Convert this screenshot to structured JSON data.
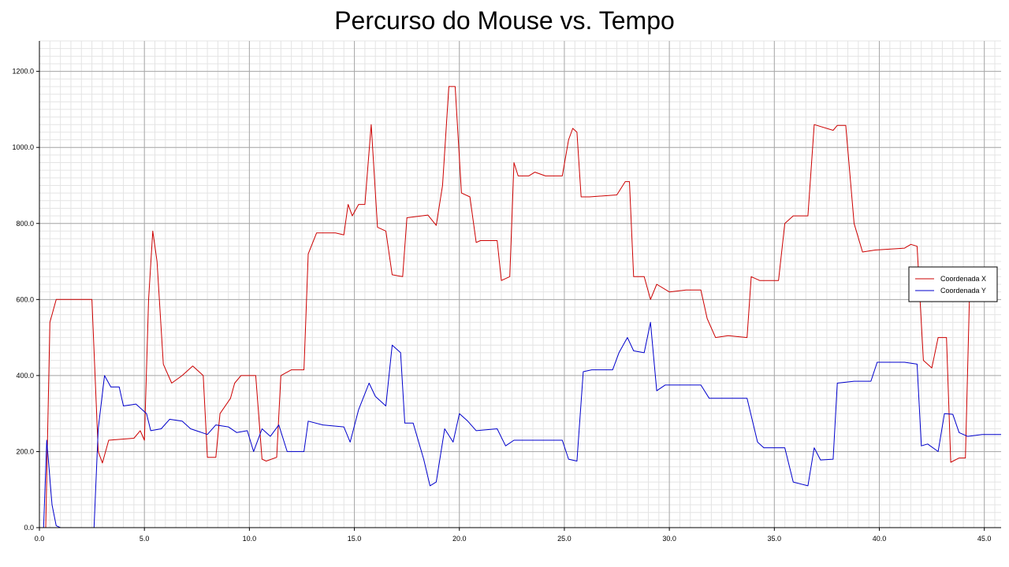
{
  "chart_data": {
    "type": "line",
    "title": "Percurso do Mouse vs. Tempo",
    "xlabel": "",
    "ylabel": "",
    "xlim": [
      0,
      45.8
    ],
    "ylim": [
      0,
      1280
    ],
    "grid": true,
    "legend_position": "right",
    "x_ticks": [
      "0.0",
      "5.0",
      "10.0",
      "15.0",
      "20.0",
      "25.0",
      "30.0",
      "35.0",
      "40.0",
      "45.0"
    ],
    "y_ticks": [
      "0.0",
      "200.0",
      "400.0",
      "600.0",
      "800.0",
      "1000.0",
      "1200.0"
    ],
    "series": [
      {
        "name": "Coordenada X",
        "color": "#cc0000",
        "points": [
          [
            0.0,
            0
          ],
          [
            0.3,
            0
          ],
          [
            0.5,
            540
          ],
          [
            0.8,
            600
          ],
          [
            2.5,
            600
          ],
          [
            2.8,
            200
          ],
          [
            3.0,
            170
          ],
          [
            3.3,
            230
          ],
          [
            4.5,
            235
          ],
          [
            4.8,
            255
          ],
          [
            5.0,
            230
          ],
          [
            5.2,
            600
          ],
          [
            5.4,
            780
          ],
          [
            5.6,
            700
          ],
          [
            5.9,
            430
          ],
          [
            6.3,
            380
          ],
          [
            6.8,
            400
          ],
          [
            7.3,
            425
          ],
          [
            7.8,
            400
          ],
          [
            8.0,
            185
          ],
          [
            8.4,
            185
          ],
          [
            8.6,
            300
          ],
          [
            9.1,
            340
          ],
          [
            9.3,
            380
          ],
          [
            9.6,
            400
          ],
          [
            10.3,
            400
          ],
          [
            10.6,
            180
          ],
          [
            10.8,
            175
          ],
          [
            11.3,
            185
          ],
          [
            11.5,
            400
          ],
          [
            12.0,
            415
          ],
          [
            12.6,
            415
          ],
          [
            12.8,
            720
          ],
          [
            13.2,
            775
          ],
          [
            14.1,
            775
          ],
          [
            14.5,
            770
          ],
          [
            14.7,
            850
          ],
          [
            14.9,
            820
          ],
          [
            15.2,
            850
          ],
          [
            15.5,
            850
          ],
          [
            15.8,
            1060
          ],
          [
            16.1,
            790
          ],
          [
            16.5,
            780
          ],
          [
            16.8,
            665
          ],
          [
            17.3,
            660
          ],
          [
            17.5,
            815
          ],
          [
            18.5,
            822
          ],
          [
            18.9,
            795
          ],
          [
            19.2,
            900
          ],
          [
            19.5,
            1160
          ],
          [
            19.8,
            1160
          ],
          [
            20.1,
            880
          ],
          [
            20.5,
            870
          ],
          [
            20.8,
            750
          ],
          [
            21.0,
            755
          ],
          [
            21.8,
            755
          ],
          [
            22.0,
            650
          ],
          [
            22.4,
            660
          ],
          [
            22.6,
            960
          ],
          [
            22.8,
            925
          ],
          [
            23.3,
            925
          ],
          [
            23.6,
            935
          ],
          [
            24.1,
            925
          ],
          [
            24.9,
            925
          ],
          [
            25.2,
            1020
          ],
          [
            25.4,
            1050
          ],
          [
            25.6,
            1040
          ],
          [
            25.8,
            870
          ],
          [
            26.2,
            870
          ],
          [
            27.5,
            875
          ],
          [
            27.9,
            910
          ],
          [
            28.1,
            910
          ],
          [
            28.3,
            660
          ],
          [
            28.8,
            660
          ],
          [
            29.1,
            600
          ],
          [
            29.4,
            640
          ],
          [
            30.0,
            620
          ],
          [
            30.8,
            625
          ],
          [
            31.5,
            625
          ],
          [
            31.8,
            550
          ],
          [
            32.2,
            500
          ],
          [
            32.8,
            505
          ],
          [
            33.7,
            500
          ],
          [
            33.9,
            660
          ],
          [
            34.3,
            650
          ],
          [
            35.2,
            650
          ],
          [
            35.5,
            800
          ],
          [
            35.9,
            820
          ],
          [
            36.6,
            820
          ],
          [
            36.9,
            1060
          ],
          [
            37.8,
            1045
          ],
          [
            38.0,
            1058
          ],
          [
            38.4,
            1058
          ],
          [
            38.8,
            800
          ],
          [
            39.2,
            725
          ],
          [
            39.8,
            730
          ],
          [
            41.2,
            735
          ],
          [
            41.5,
            745
          ],
          [
            41.8,
            740
          ],
          [
            42.1,
            440
          ],
          [
            42.5,
            420
          ],
          [
            42.8,
            500
          ],
          [
            43.2,
            500
          ],
          [
            43.4,
            172
          ],
          [
            43.8,
            183
          ],
          [
            44.1,
            183
          ],
          [
            44.3,
            620
          ]
        ]
      },
      {
        "name": "Coordenada Y",
        "color": "#0000cc",
        "points": [
          [
            0.0,
            0
          ],
          [
            0.2,
            0
          ],
          [
            0.35,
            230
          ],
          [
            0.6,
            60
          ],
          [
            0.8,
            5
          ],
          [
            1.0,
            0
          ],
          [
            2.6,
            0
          ],
          [
            2.8,
            260
          ],
          [
            3.1,
            400
          ],
          [
            3.4,
            370
          ],
          [
            3.8,
            370
          ],
          [
            4.0,
            320
          ],
          [
            4.6,
            325
          ],
          [
            5.1,
            300
          ],
          [
            5.3,
            255
          ],
          [
            5.8,
            260
          ],
          [
            6.2,
            285
          ],
          [
            6.8,
            280
          ],
          [
            7.2,
            260
          ],
          [
            8.0,
            245
          ],
          [
            8.4,
            270
          ],
          [
            9.0,
            265
          ],
          [
            9.4,
            250
          ],
          [
            9.9,
            255
          ],
          [
            10.2,
            200
          ],
          [
            10.6,
            260
          ],
          [
            11.0,
            240
          ],
          [
            11.4,
            270
          ],
          [
            11.8,
            200
          ],
          [
            12.6,
            200
          ],
          [
            12.8,
            280
          ],
          [
            13.5,
            270
          ],
          [
            14.5,
            265
          ],
          [
            14.8,
            225
          ],
          [
            15.2,
            310
          ],
          [
            15.7,
            380
          ],
          [
            16.0,
            345
          ],
          [
            16.5,
            320
          ],
          [
            16.8,
            480
          ],
          [
            17.2,
            460
          ],
          [
            17.4,
            275
          ],
          [
            17.8,
            275
          ],
          [
            18.3,
            180
          ],
          [
            18.6,
            110
          ],
          [
            18.9,
            120
          ],
          [
            19.3,
            260
          ],
          [
            19.7,
            225
          ],
          [
            20.0,
            300
          ],
          [
            20.4,
            280
          ],
          [
            20.8,
            255
          ],
          [
            21.8,
            260
          ],
          [
            22.2,
            215
          ],
          [
            22.6,
            230
          ],
          [
            24.9,
            230
          ],
          [
            25.2,
            180
          ],
          [
            25.6,
            175
          ],
          [
            25.9,
            410
          ],
          [
            26.3,
            415
          ],
          [
            27.3,
            415
          ],
          [
            27.6,
            460
          ],
          [
            28.0,
            500
          ],
          [
            28.3,
            465
          ],
          [
            28.8,
            460
          ],
          [
            29.1,
            540
          ],
          [
            29.4,
            360
          ],
          [
            29.8,
            375
          ],
          [
            31.5,
            375
          ],
          [
            31.9,
            340
          ],
          [
            33.7,
            340
          ],
          [
            34.2,
            225
          ],
          [
            34.5,
            210
          ],
          [
            35.5,
            210
          ],
          [
            35.9,
            120
          ],
          [
            36.6,
            110
          ],
          [
            36.9,
            210
          ],
          [
            37.2,
            178
          ],
          [
            37.8,
            180
          ],
          [
            38.0,
            380
          ],
          [
            38.8,
            385
          ],
          [
            39.6,
            385
          ],
          [
            39.9,
            435
          ],
          [
            41.2,
            435
          ],
          [
            41.8,
            430
          ],
          [
            42.0,
            215
          ],
          [
            42.3,
            220
          ],
          [
            42.8,
            200
          ],
          [
            43.1,
            300
          ],
          [
            43.5,
            298
          ],
          [
            43.8,
            250
          ],
          [
            44.2,
            240
          ],
          [
            44.9,
            245
          ],
          [
            45.8,
            245
          ]
        ]
      }
    ]
  }
}
